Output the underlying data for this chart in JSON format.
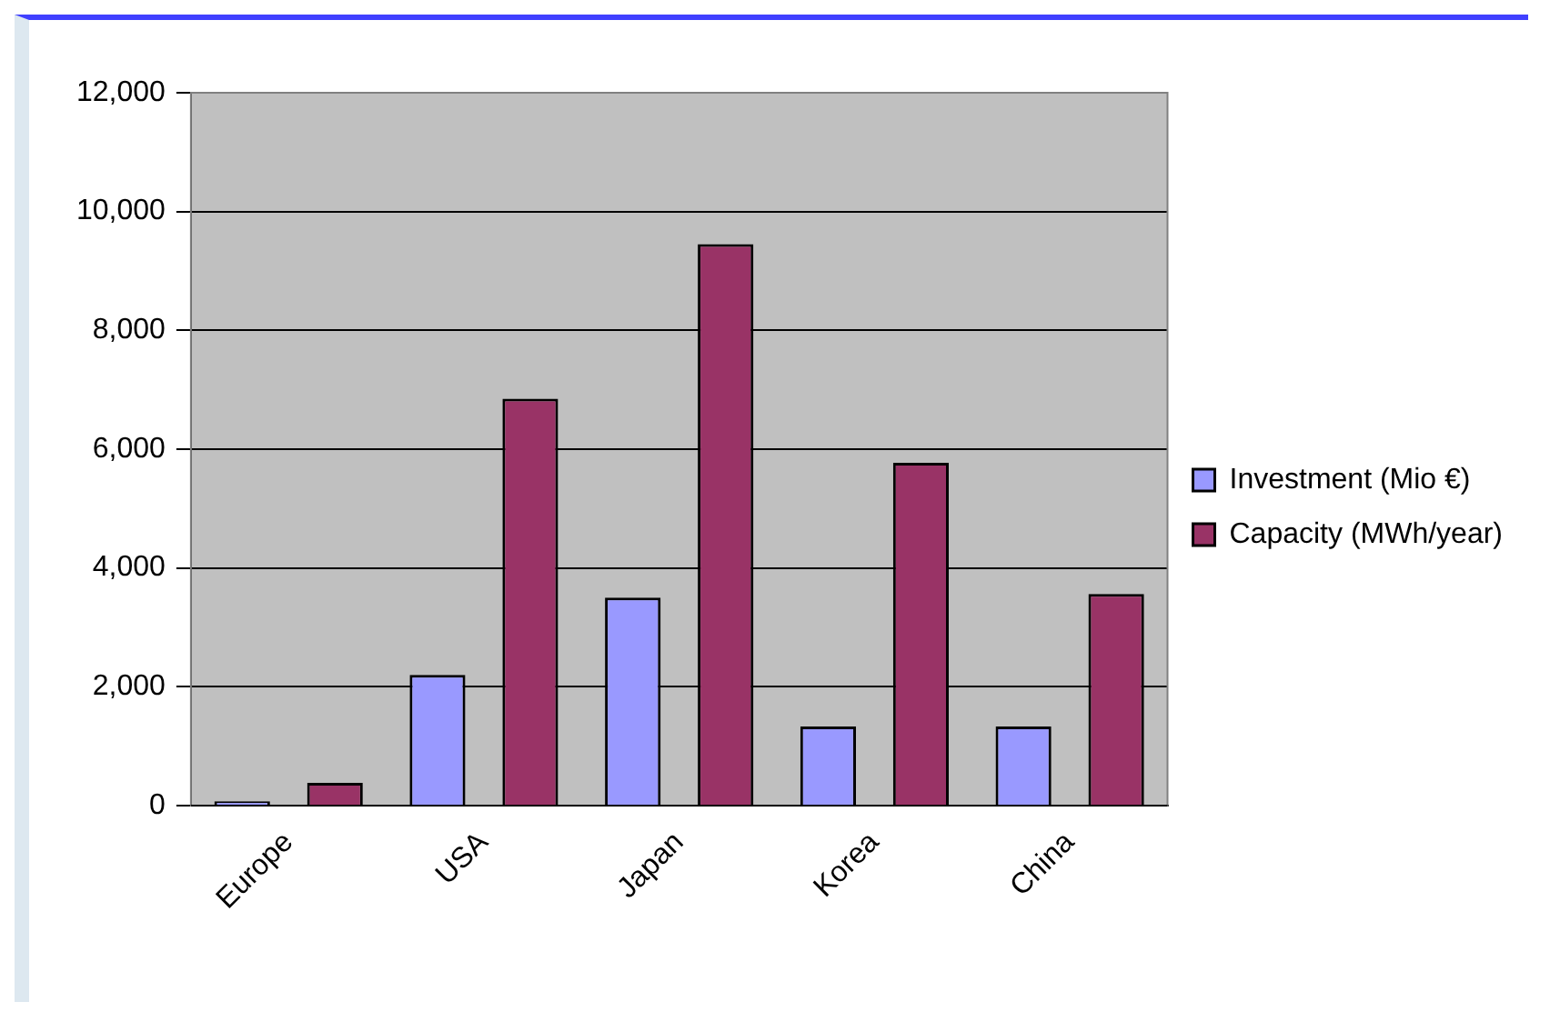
{
  "chart_data": {
    "type": "bar",
    "categories": [
      "Europe",
      "USA",
      "Japan",
      "Korea",
      "China"
    ],
    "series": [
      {
        "name": "Investment (Mio €)",
        "color": "#9999ff",
        "values": [
          70,
          2200,
          3500,
          1330,
          1330
        ]
      },
      {
        "name": "Capacity (MWh/year)",
        "color": "#993366",
        "values": [
          380,
          6850,
          9450,
          5770,
          3560
        ]
      }
    ],
    "ylim": [
      0,
      12000
    ],
    "yticks": [
      {
        "value": 0,
        "label": "0"
      },
      {
        "value": 2000,
        "label": "2,000"
      },
      {
        "value": 4000,
        "label": "4,000"
      },
      {
        "value": 6000,
        "label": "6,000"
      },
      {
        "value": 8000,
        "label": "8,000"
      },
      {
        "value": 10000,
        "label": "10,000"
      },
      {
        "value": 12000,
        "label": "12,000"
      }
    ],
    "grid": "y",
    "legend": "right"
  }
}
